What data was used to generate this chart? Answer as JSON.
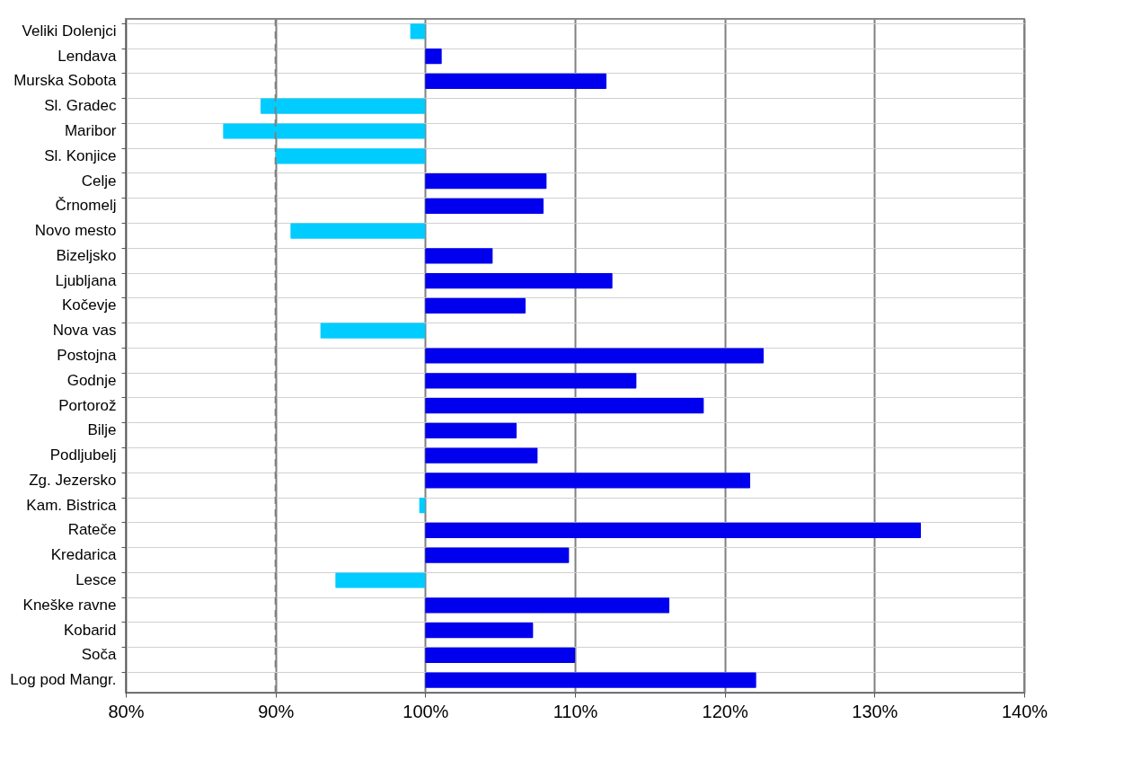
{
  "chart_data": {
    "type": "bar",
    "orientation": "horizontal",
    "categories": [
      "Veliki Dolenjci",
      "Lendava",
      "Murska Sobota",
      "Sl. Gradec",
      "Maribor",
      "Sl. Konjice",
      "Celje",
      "Črnomelj",
      "Novo mesto",
      "Bizeljsko",
      "Ljubljana",
      "Kočevje",
      "Nova vas",
      "Postojna",
      "Godnje",
      "Portorož",
      "Bilje",
      "Podljubelj",
      "Zg. Jezersko",
      "Kam. Bistrica",
      "Rateče",
      "Kredarica",
      "Lesce",
      "Kneške ravne",
      "Kobarid",
      "Soča",
      "Log pod Mangr."
    ],
    "base": [
      100,
      100,
      100,
      100,
      100,
      100,
      100,
      100,
      100,
      100,
      100,
      100,
      100,
      100,
      100,
      100,
      100,
      100,
      100,
      100,
      100,
      100,
      100,
      100,
      100,
      100,
      100
    ],
    "values": [
      -1.0,
      1.1,
      12.1,
      -11.0,
      -13.5,
      -10.0,
      8.1,
      7.9,
      -9.0,
      4.5,
      12.5,
      6.7,
      -7.0,
      22.6,
      14.1,
      18.6,
      6.1,
      7.5,
      21.7,
      -0.4,
      33.1,
      9.6,
      -6.0,
      16.3,
      7.2,
      10.0,
      22.1
    ],
    "colors": [
      "#00ccff",
      "#0000ee",
      "#0000ee",
      "#00ccff",
      "#00ccff",
      "#00ccff",
      "#0000ee",
      "#0000ee",
      "#00ccff",
      "#0000ee",
      "#0000ee",
      "#0000ee",
      "#00ccff",
      "#0000ee",
      "#0000ee",
      "#0000ee",
      "#0000ee",
      "#0000ee",
      "#0000ee",
      "#00ccff",
      "#0000ee",
      "#0000ee",
      "#00ccff",
      "#0000ee",
      "#0000ee",
      "#0000ee",
      "#0000ee"
    ],
    "xlim": [
      80,
      140
    ],
    "xticks": [
      {
        "value": 80,
        "label": "80%"
      },
      {
        "value": 90,
        "label": "90%"
      },
      {
        "value": 100,
        "label": "100%"
      },
      {
        "value": 110,
        "label": "110%"
      },
      {
        "value": 120,
        "label": "120%"
      },
      {
        "value": 130,
        "label": "130%"
      },
      {
        "value": 140,
        "label": "140%"
      }
    ],
    "grid": true,
    "ref_lines": [
      {
        "axis": "x",
        "value": 90,
        "line_style": "dashed",
        "color": "#808080"
      }
    ]
  }
}
